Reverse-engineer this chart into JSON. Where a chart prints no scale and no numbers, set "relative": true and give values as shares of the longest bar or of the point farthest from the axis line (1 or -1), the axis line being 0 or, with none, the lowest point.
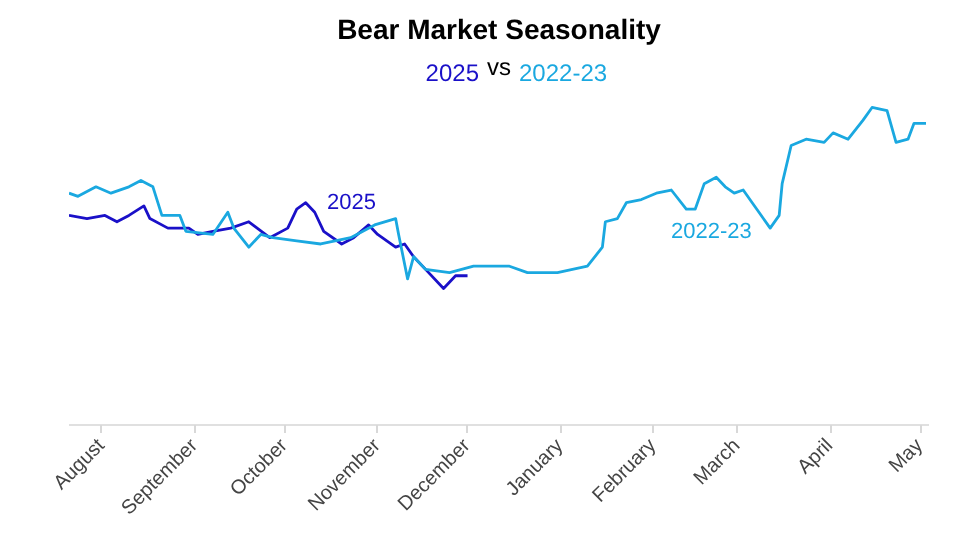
{
  "chart_data": {
    "type": "line",
    "title": "Bear Market Seasonality",
    "subtitle": "2025 vs 2022-23",
    "relative": true,
    "legend": false,
    "grid": false,
    "xlim": [
      "2022-07-21",
      "2023-05-04"
    ],
    "xticks": [
      {
        "value": "2022-08-01",
        "label": "August"
      },
      {
        "value": "2022-09-01",
        "label": "September"
      },
      {
        "value": "2022-10-01",
        "label": "October"
      },
      {
        "value": "2022-11-01",
        "label": "November"
      },
      {
        "value": "2022-12-01",
        "label": "December"
      },
      {
        "value": "2023-01-01",
        "label": "January"
      },
      {
        "value": "2023-02-01",
        "label": "February"
      },
      {
        "value": "2023-03-01",
        "label": "March"
      },
      {
        "value": "2023-04-01",
        "label": "April"
      },
      {
        "value": "2023-05-01",
        "label": "May"
      }
    ],
    "series": [
      {
        "name": "2025",
        "color": "#1a10c8",
        "x": [
          "2022-07-21",
          "2022-07-27",
          "2022-08-02",
          "2022-08-06",
          "2022-08-10",
          "2022-08-15",
          "2022-08-17",
          "2022-08-23",
          "2022-08-30",
          "2022-09-02",
          "2022-09-07",
          "2022-09-13",
          "2022-09-19",
          "2022-09-26",
          "2022-10-02",
          "2022-10-05",
          "2022-10-08",
          "2022-10-11",
          "2022-10-14",
          "2022-10-20",
          "2022-10-24",
          "2022-10-29",
          "2022-11-01",
          "2022-11-07",
          "2022-11-10",
          "2022-11-13",
          "2022-11-17",
          "2022-11-23",
          "2022-11-27",
          "2022-12-01"
        ],
        "values": [
          0.66,
          0.65,
          0.66,
          0.64,
          0.66,
          0.69,
          0.65,
          0.62,
          0.62,
          0.6,
          0.61,
          0.62,
          0.64,
          0.59,
          0.62,
          0.68,
          0.7,
          0.67,
          0.61,
          0.57,
          0.59,
          0.63,
          0.6,
          0.56,
          0.57,
          0.53,
          0.49,
          0.43,
          0.47,
          0.47
        ]
      },
      {
        "name": "2022-23",
        "color": "#1aa8e0",
        "x": [
          "2022-07-21",
          "2022-07-24",
          "2022-07-30",
          "2022-08-04",
          "2022-08-10",
          "2022-08-14",
          "2022-08-18",
          "2022-08-21",
          "2022-08-27",
          "2022-08-29",
          "2022-09-07",
          "2022-09-12",
          "2022-09-14",
          "2022-09-19",
          "2022-09-23",
          "2022-09-27",
          "2022-10-05",
          "2022-10-13",
          "2022-10-23",
          "2022-10-31",
          "2022-11-07",
          "2022-11-08",
          "2022-11-11",
          "2022-11-13",
          "2022-11-17",
          "2022-11-25",
          "2022-12-03",
          "2022-12-11",
          "2022-12-15",
          "2022-12-21",
          "2022-12-31",
          "2023-01-10",
          "2023-01-15",
          "2023-01-16",
          "2023-01-20",
          "2023-01-23",
          "2023-01-28",
          "2023-02-02",
          "2023-02-07",
          "2023-02-12",
          "2023-02-15",
          "2023-02-18",
          "2023-02-22",
          "2023-02-25",
          "2023-02-28",
          "2023-03-03",
          "2023-03-06",
          "2023-03-12",
          "2023-03-15",
          "2023-03-16",
          "2023-03-19",
          "2023-03-24",
          "2023-03-30",
          "2023-04-02",
          "2023-04-07",
          "2023-04-12",
          "2023-04-15",
          "2023-04-20",
          "2023-04-23",
          "2023-04-27",
          "2023-04-29",
          "2023-05-03"
        ],
        "values": [
          0.73,
          0.72,
          0.75,
          0.73,
          0.75,
          0.77,
          0.75,
          0.66,
          0.66,
          0.61,
          0.6,
          0.67,
          0.62,
          0.56,
          0.6,
          0.59,
          0.58,
          0.57,
          0.59,
          0.63,
          0.65,
          0.6,
          0.46,
          0.53,
          0.49,
          0.48,
          0.5,
          0.5,
          0.5,
          0.48,
          0.48,
          0.5,
          0.56,
          0.64,
          0.65,
          0.7,
          0.71,
          0.73,
          0.74,
          0.68,
          0.68,
          0.76,
          0.78,
          0.75,
          0.73,
          0.74,
          0.7,
          0.62,
          0.66,
          0.76,
          0.88,
          0.9,
          0.89,
          0.92,
          0.9,
          0.96,
          1.0,
          0.99,
          0.89,
          0.9,
          0.95,
          0.95
        ]
      }
    ]
  }
}
